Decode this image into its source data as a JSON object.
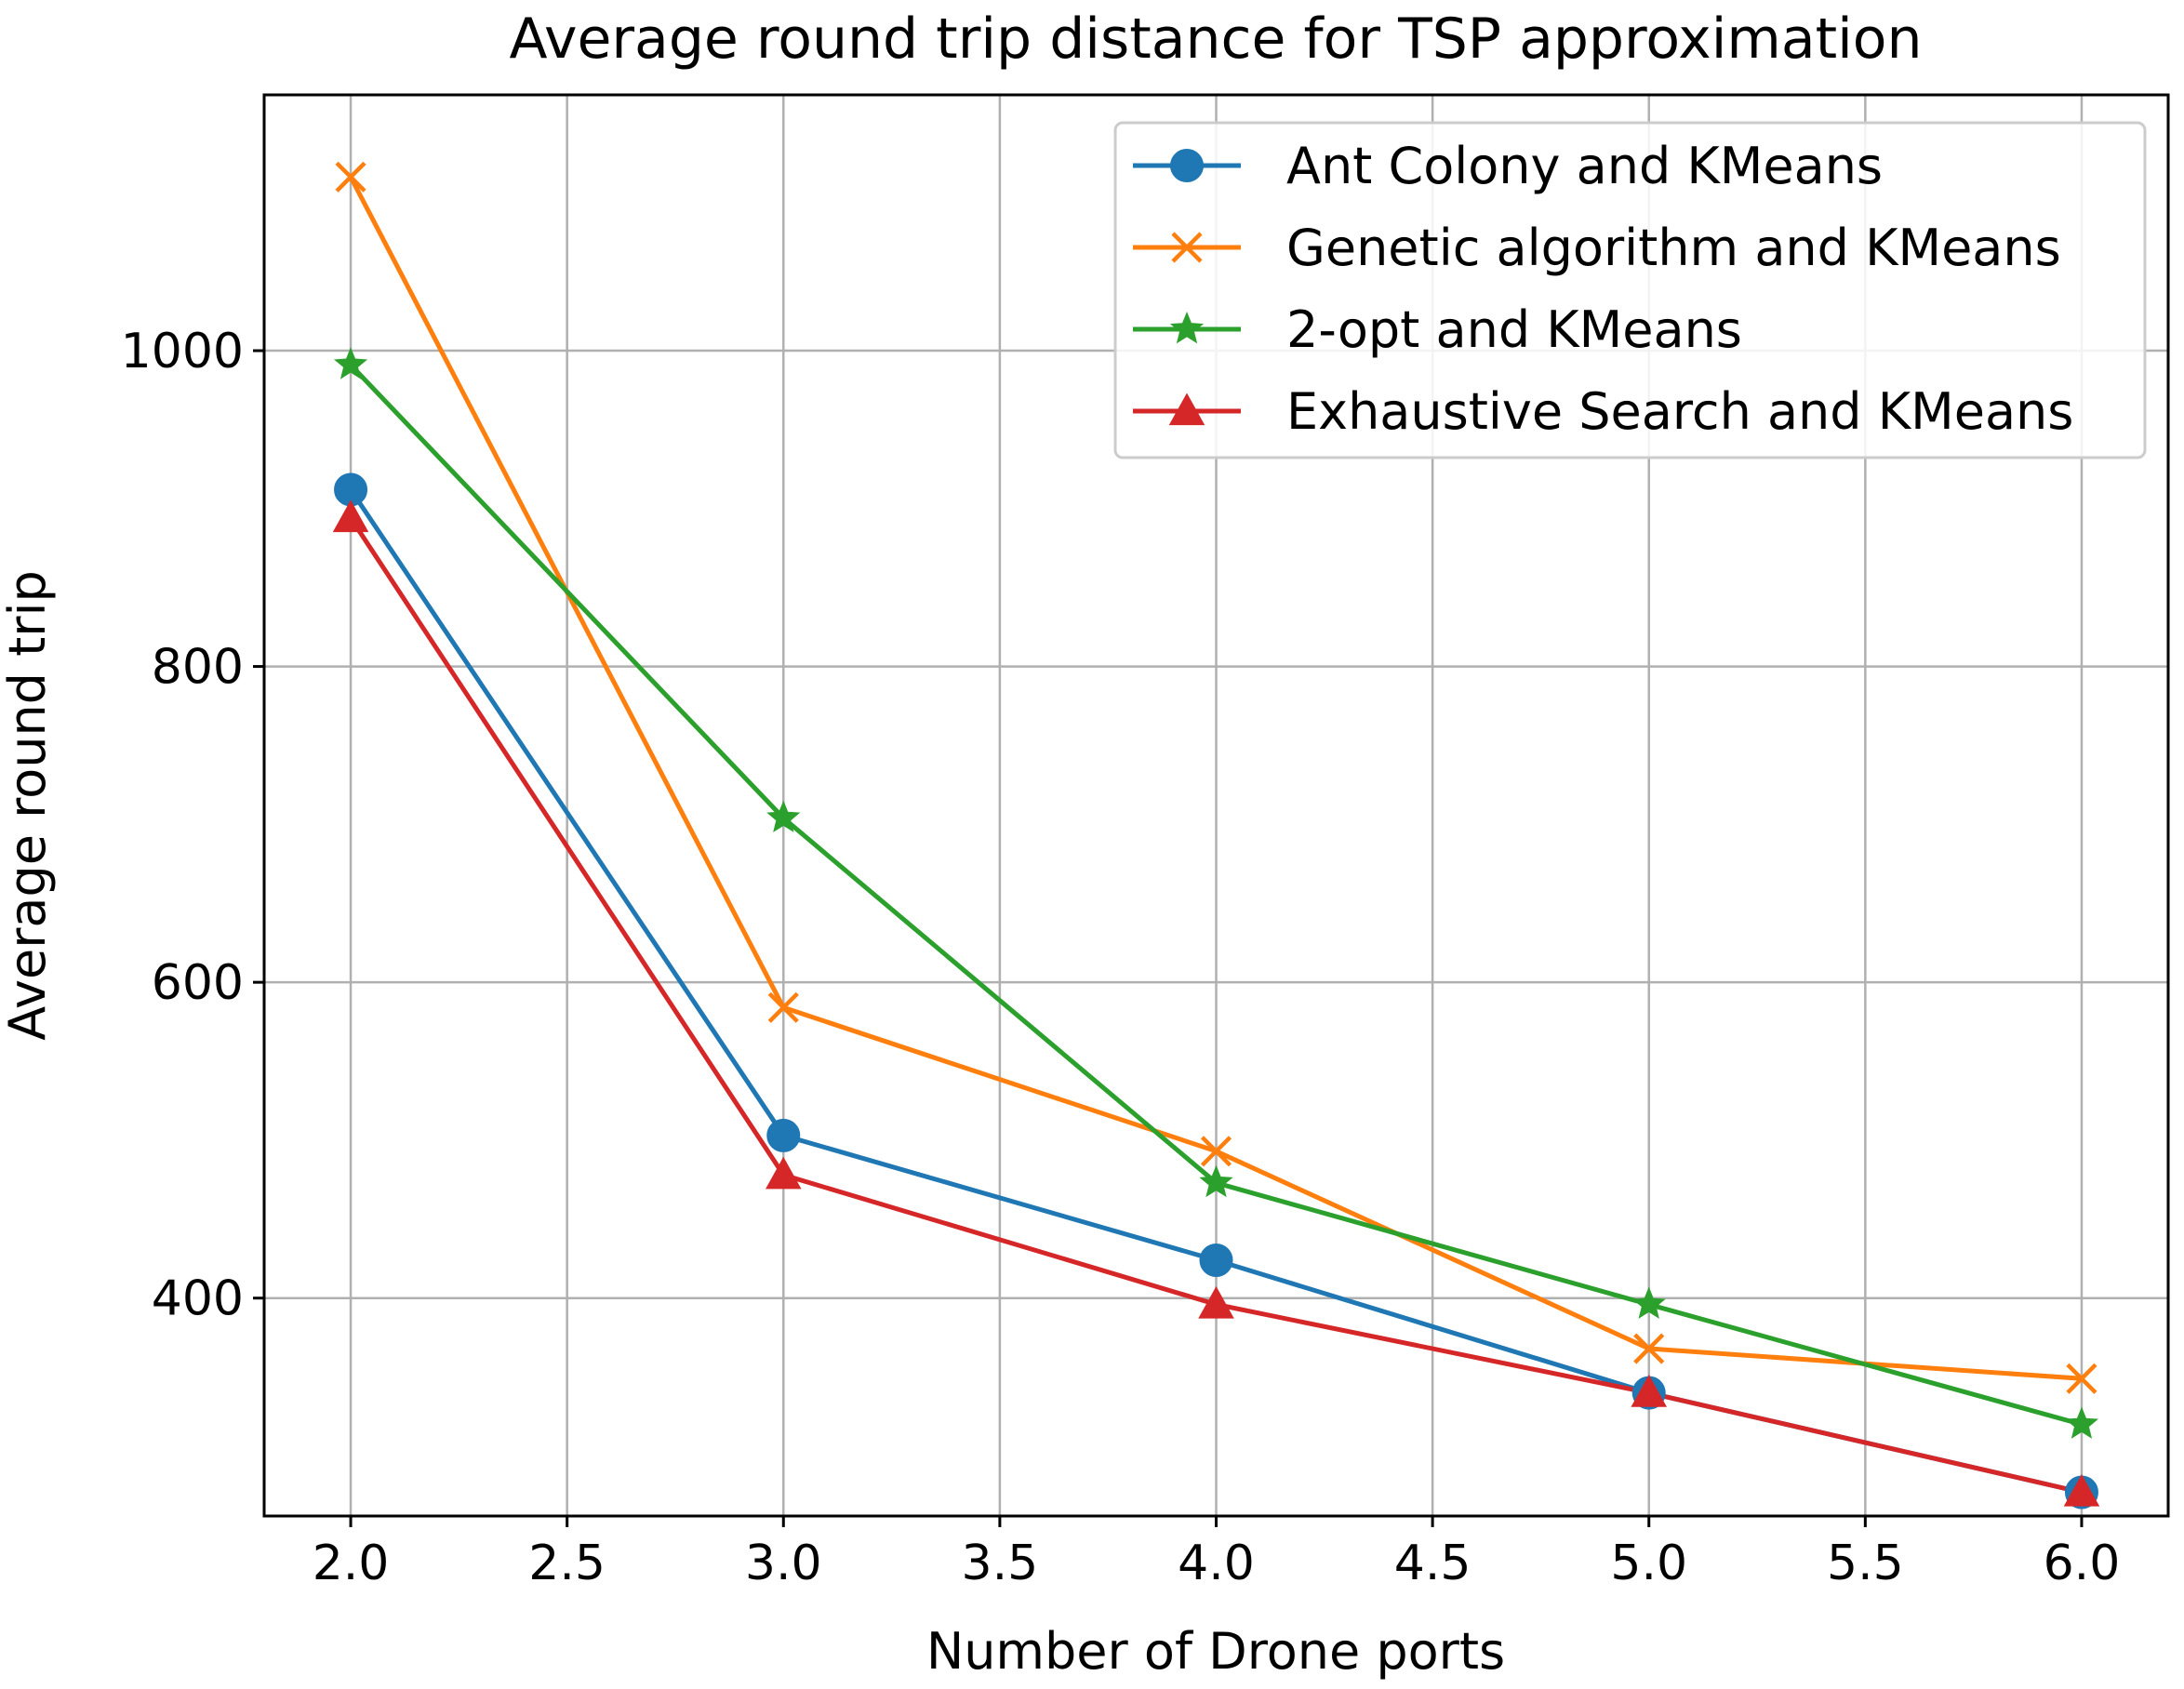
{
  "chart_data": {
    "type": "line",
    "title": "Average round trip distance for TSP approximation",
    "xlabel": "Number of Drone ports",
    "ylabel": "Average round trip",
    "xlim": [
      1.8,
      6.2
    ],
    "ylim": [
      262,
      1162
    ],
    "x_ticks": [
      2.0,
      2.5,
      3.0,
      3.5,
      4.0,
      4.5,
      5.0,
      5.5,
      6.0
    ],
    "x_tick_labels": [
      "2.0",
      "2.5",
      "3.0",
      "3.5",
      "4.0",
      "4.5",
      "5.0",
      "5.5",
      "6.0"
    ],
    "y_ticks": [
      400,
      600,
      800,
      1000
    ],
    "y_tick_labels": [
      "400",
      "600",
      "800",
      "1000"
    ],
    "grid": true,
    "legend_position": "top-right",
    "x": [
      2,
      3,
      4,
      5,
      6
    ],
    "series": [
      {
        "name": "Ant Colony and KMeans",
        "color": "#1f77b4",
        "marker": "circle",
        "values": [
          912,
          503,
          424,
          340,
          277
        ]
      },
      {
        "name": "Genetic algorithm and KMeans",
        "color": "#ff7f0e",
        "marker": "x",
        "values": [
          1110,
          584,
          493,
          368,
          349
        ]
      },
      {
        "name": "2-opt and KMeans",
        "color": "#2ca02c",
        "marker": "star",
        "values": [
          991,
          704,
          473,
          396,
          320
        ]
      },
      {
        "name": "Exhaustive Search and KMeans",
        "color": "#d62728",
        "marker": "triangle",
        "values": [
          894,
          478,
          396,
          340,
          277
        ]
      }
    ]
  }
}
